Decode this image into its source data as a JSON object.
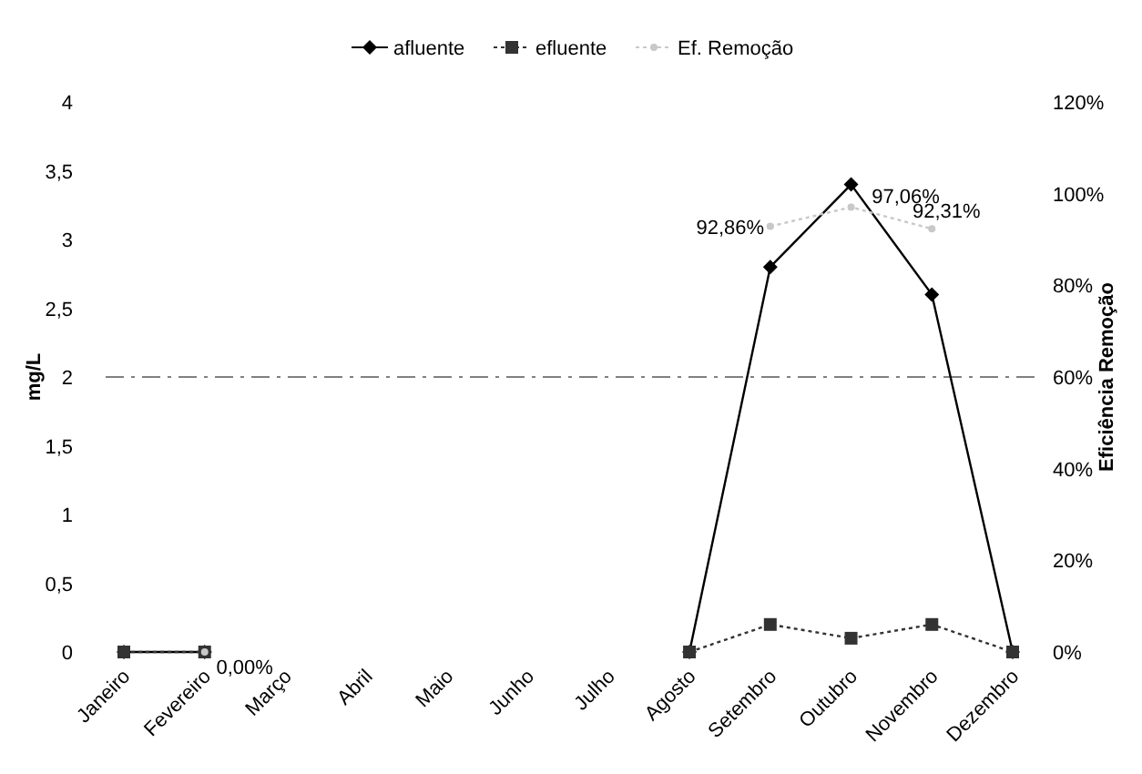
{
  "chart_data": {
    "type": "line",
    "categories": [
      "Janeiro",
      "Fevereiro",
      "Março",
      "Abril",
      "Maio",
      "Junho",
      "Julho",
      "Agosto",
      "Setembro",
      "Outubro",
      "Novembro",
      "Dezembro"
    ],
    "series": [
      {
        "name": "afluente",
        "color": "#000000",
        "marker": "diamond",
        "line_style": "solid",
        "values": [
          0,
          0,
          null,
          null,
          null,
          null,
          null,
          0,
          2.8,
          3.4,
          2.6,
          0
        ]
      },
      {
        "name": "efluente",
        "color": "#333333",
        "marker": "square",
        "line_style": "dotted",
        "values": [
          0,
          0,
          null,
          null,
          null,
          null,
          null,
          0,
          0.2,
          0.1,
          0.2,
          0
        ]
      },
      {
        "name": "Ef. Remoção",
        "color": "#c8c8c8",
        "marker": "circle",
        "line_style": "dotted",
        "axis": "y2",
        "values": [
          null,
          0,
          null,
          null,
          null,
          null,
          null,
          null,
          92.86,
          97.06,
          92.31,
          null
        ],
        "value_labels": [
          null,
          "0,00%",
          null,
          null,
          null,
          null,
          null,
          null,
          "92,86%",
          "97,06%",
          "92,31%",
          null
        ]
      }
    ],
    "ylabel": "mg/L",
    "y2label": "Eficiência Remoção",
    "ylim": [
      0,
      4
    ],
    "yticks": [
      0,
      {
        "value": 0.5,
        "label": "0,5"
      },
      1,
      {
        "value": 1.5,
        "label": "1,5"
      },
      2,
      {
        "value": 2.5,
        "label": "2,5"
      },
      3,
      {
        "value": 3.5,
        "label": "3,5"
      },
      4
    ],
    "y2lim": [
      0,
      120
    ],
    "y2ticks": [
      {
        "value": 0,
        "label": "0%"
      },
      {
        "value": 20,
        "label": "20%"
      },
      {
        "value": 40,
        "label": "40%"
      },
      {
        "value": 60,
        "label": "60%"
      },
      {
        "value": 80,
        "label": "80%"
      },
      {
        "value": 100,
        "label": "100%"
      },
      {
        "value": 120,
        "label": "120%"
      }
    ],
    "ref_lines": [
      {
        "axis": "y2",
        "value": 60,
        "label": null,
        "color": "#808080",
        "line_style": "dashdot"
      }
    ],
    "legend": "top",
    "grid": false
  }
}
